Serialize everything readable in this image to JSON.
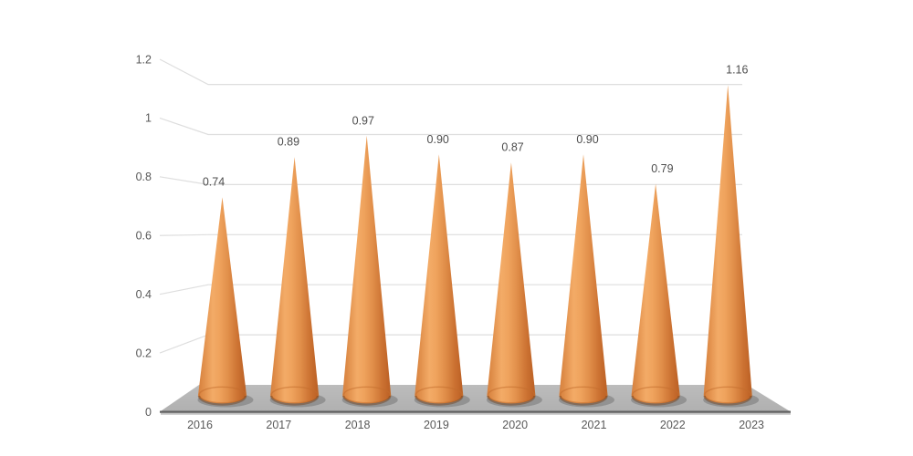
{
  "chart_data": {
    "type": "bar",
    "style": "3d-cone",
    "title": "",
    "xlabel": "",
    "ylabel": "",
    "categories": [
      "2016",
      "2017",
      "2018",
      "2019",
      "2020",
      "2021",
      "2022",
      "2023"
    ],
    "values": [
      0.74,
      0.89,
      0.97,
      0.9,
      0.87,
      0.9,
      0.79,
      1.16
    ],
    "data_labels": [
      "0.74",
      "0.89",
      "0.97",
      "0.90",
      "0.87",
      "0.90",
      "0.79",
      "1.16"
    ],
    "y_axis": {
      "tick_labels": [
        "0",
        "0.2",
        "0.4",
        "0.6",
        "0.8",
        "1",
        "1.2"
      ],
      "tick_values": [
        0,
        0.2,
        0.4,
        0.6,
        0.8,
        1,
        1.2
      ],
      "min": 0,
      "max": 1.2
    },
    "grid": true,
    "legend": false,
    "data_labels_shown": true,
    "colors": {
      "cone_main": "#ED7D31",
      "cone_highlight": "#F3AB67",
      "cone_edge_left": "#D6813F",
      "cone_edge_right": "#BD6226",
      "floor": "#B5B5B5",
      "floor_front_edge": "#606060",
      "gridline": "#DEDEDE",
      "axis_text": "#595959",
      "data_label_text": "#4D4D4D",
      "background": "#FFFFFF"
    }
  }
}
